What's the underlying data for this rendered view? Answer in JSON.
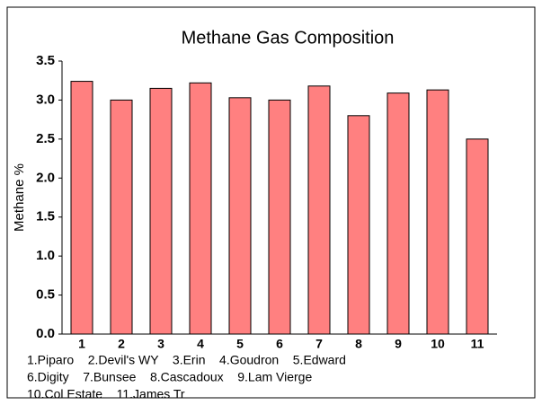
{
  "chart_data": {
    "type": "bar",
    "title": "Methane Gas Composition",
    "y_label": "Methane %",
    "categories": [
      "1",
      "2",
      "3",
      "4",
      "5",
      "6",
      "7",
      "8",
      "9",
      "10",
      "11"
    ],
    "values": [
      3.24,
      3.0,
      3.15,
      3.22,
      3.03,
      3.0,
      3.18,
      2.8,
      3.09,
      3.13,
      2.5
    ],
    "color": "#ff8080",
    "ylim": [
      0,
      3.5
    ],
    "yticks": [
      {
        "value": 0,
        "label": "0.0"
      },
      0.5,
      {
        "value": 1,
        "label": "1.0"
      },
      1.5,
      {
        "value": 2,
        "label": "2.0"
      },
      2.5,
      {
        "value": 3,
        "label": "3.0"
      },
      3.5
    ],
    "notes": [
      "1.Piparo    2.Devil's WY    3.Erin    4.Goudron    5.Edward",
      "6.Digity    7.Bunsee    8.Cascadoux    9.Lam Vierge",
      "10.Col Estate    11.James Tr"
    ]
  }
}
